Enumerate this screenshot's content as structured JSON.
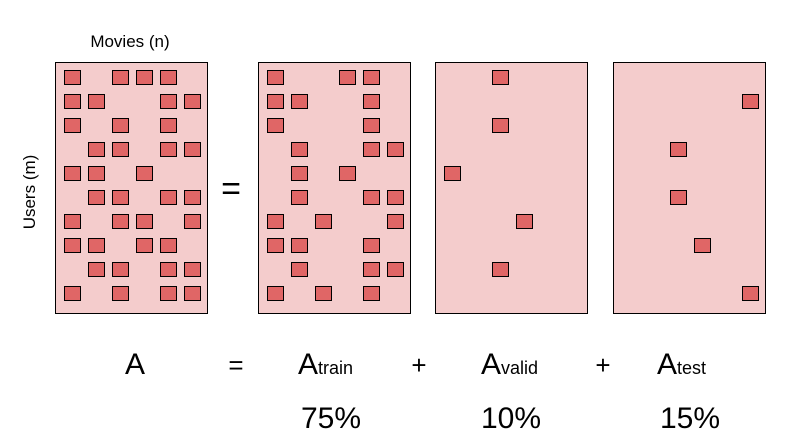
{
  "axis_labels": {
    "columns": "Movies (n)",
    "rows": "Users (m)"
  },
  "matrix_equals": "=",
  "equation": {
    "lhs": "A",
    "equals": "=",
    "plus": [
      "+",
      "+"
    ],
    "terms": [
      {
        "symbol": "A",
        "subscript": "train",
        "share": "75%"
      },
      {
        "symbol": "A",
        "subscript": "valid",
        "share": "10%"
      },
      {
        "symbol": "A",
        "subscript": "test",
        "share": "15%"
      }
    ]
  }
}
